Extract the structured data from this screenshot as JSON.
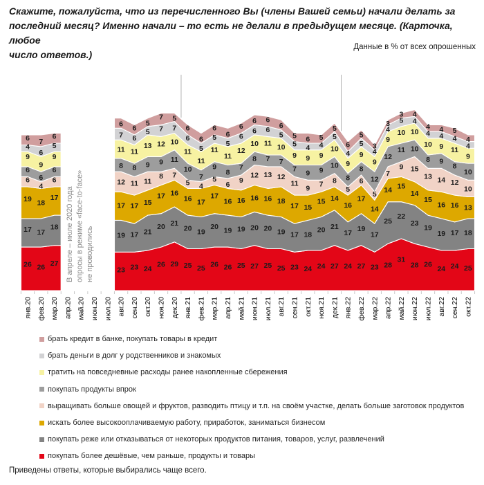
{
  "title": "Скажите, пожалуйста, что из перечисленного Вы (члены Вашей семьи) начали делать за\nпоследний месяц?  Именно начали – то есть не делали в предыдущем месяце. (Карточка, любое\nчисло ответов.)",
  "subtitle": "Данные в % от всех опрошенных",
  "footer": "Приведены ответы, которые выбирались чаще всего.",
  "gap_note_lines": [
    "В апреле – июле 2020 года",
    "опросы в режиме «face-to-face»",
    "не проводились"
  ],
  "chart_data": {
    "type": "area",
    "stacked": true,
    "unit": "%",
    "legend_position": "bottom",
    "grid": false,
    "categories": [
      "янв.20",
      "фев.20",
      "мар.20",
      "апр.20",
      "май.20",
      "июн.20",
      "июл.20",
      "авг.20",
      "сен.20",
      "окт.20",
      "ноя.20",
      "дек.20",
      "янв.21",
      "фев.21",
      "мар.21",
      "апр.21",
      "май.21",
      "июн.21",
      "июл.21",
      "авг.21",
      "сен.21",
      "окт.21",
      "ноя.21",
      "дек.21",
      "янв.22",
      "фев.22",
      "мар.22",
      "апр.22",
      "май.22",
      "июн.22",
      "июл.22",
      "авг.22",
      "сен.22",
      "окт.22"
    ],
    "no_data_categories": [
      "апр.20",
      "май.20",
      "июн.20",
      "июл.20"
    ],
    "year_separator_after": [
      "дек.20",
      "дек.21"
    ],
    "series": [
      {
        "name": "брать кредит в банке, покупать товары в кредит",
        "color": "#d09e9e",
        "values": [
          6,
          7,
          6,
          null,
          null,
          null,
          null,
          6,
          6,
          5,
          7,
          5,
          6,
          6,
          6,
          6,
          6,
          6,
          6,
          6,
          5,
          6,
          5,
          5,
          6,
          5,
          3,
          3,
          3,
          4,
          4,
          4,
          5,
          4
        ]
      },
      {
        "name": "брать деньги в долг у родственников и знакомых",
        "color": "#d2d2d4",
        "values": [
          4,
          6,
          5,
          null,
          null,
          null,
          null,
          7,
          6,
          5,
          7,
          7,
          6,
          5,
          5,
          5,
          6,
          6,
          6,
          5,
          5,
          4,
          4,
          5,
          4,
          5,
          4,
          4,
          5,
          4,
          4,
          4,
          4,
          4
        ]
      },
      {
        "name": "тратить на повседневные расходы ранее накопленные сбережения",
        "color": "#f7f2a2",
        "values": [
          9,
          9,
          9,
          null,
          null,
          null,
          null,
          11,
          11,
          13,
          12,
          10,
          11,
          11,
          11,
          11,
          12,
          10,
          11,
          10,
          9,
          9,
          9,
          10,
          9,
          9,
          9,
          9,
          10,
          10,
          10,
          9,
          11,
          9
        ]
      },
      {
        "name": "покупать продукты впрок",
        "color": "#9d9d9d",
        "values": [
          6,
          6,
          6,
          null,
          null,
          null,
          null,
          8,
          8,
          9,
          9,
          11,
          10,
          7,
          9,
          8,
          7,
          8,
          7,
          7,
          7,
          9,
          9,
          10,
          8,
          8,
          12,
          12,
          11,
          10,
          8,
          9,
          8,
          10
        ]
      },
      {
        "name": "выращивать больше овощей и фруктов, разводить птицу и т.п. на своём участке, делать больше заготовок продуктов",
        "color": "#f1d3c6",
        "values": [
          6,
          4,
          6,
          null,
          null,
          null,
          null,
          12,
          11,
          11,
          8,
          7,
          5,
          4,
          5,
          6,
          9,
          12,
          13,
          12,
          11,
          9,
          7,
          8,
          5,
          6,
          5,
          7,
          9,
          15,
          13,
          14,
          12,
          10
        ]
      },
      {
        "name": "искать более высокооплачиваемую работу, приработок, заниматься бизнесом",
        "color": "#dda800",
        "values": [
          19,
          18,
          17,
          null,
          null,
          null,
          null,
          17,
          17,
          15,
          17,
          16,
          16,
          17,
          17,
          16,
          16,
          16,
          16,
          18,
          17,
          15,
          15,
          14,
          16,
          17,
          14,
          14,
          15,
          14,
          15,
          16,
          16,
          13
        ]
      },
      {
        "name": "покупать реже или отказываться от некоторых продуктов питания, товаров, услуг, развлечений",
        "color": "#838383",
        "values": [
          17,
          17,
          18,
          null,
          null,
          null,
          null,
          19,
          17,
          21,
          20,
          21,
          20,
          19,
          20,
          19,
          19,
          20,
          20,
          19,
          17,
          18,
          20,
          21,
          17,
          19,
          17,
          25,
          22,
          23,
          19,
          19,
          17,
          18
        ]
      },
      {
        "name": "покупать более дешёвые, чем раньше, продукты и товары",
        "color": "#e30617",
        "values": [
          26,
          26,
          27,
          null,
          null,
          null,
          null,
          23,
          23,
          24,
          26,
          29,
          25,
          25,
          26,
          26,
          25,
          27,
          25,
          25,
          23,
          24,
          24,
          27,
          24,
          27,
          23,
          28,
          31,
          28,
          26,
          24,
          24,
          25
        ]
      }
    ]
  }
}
